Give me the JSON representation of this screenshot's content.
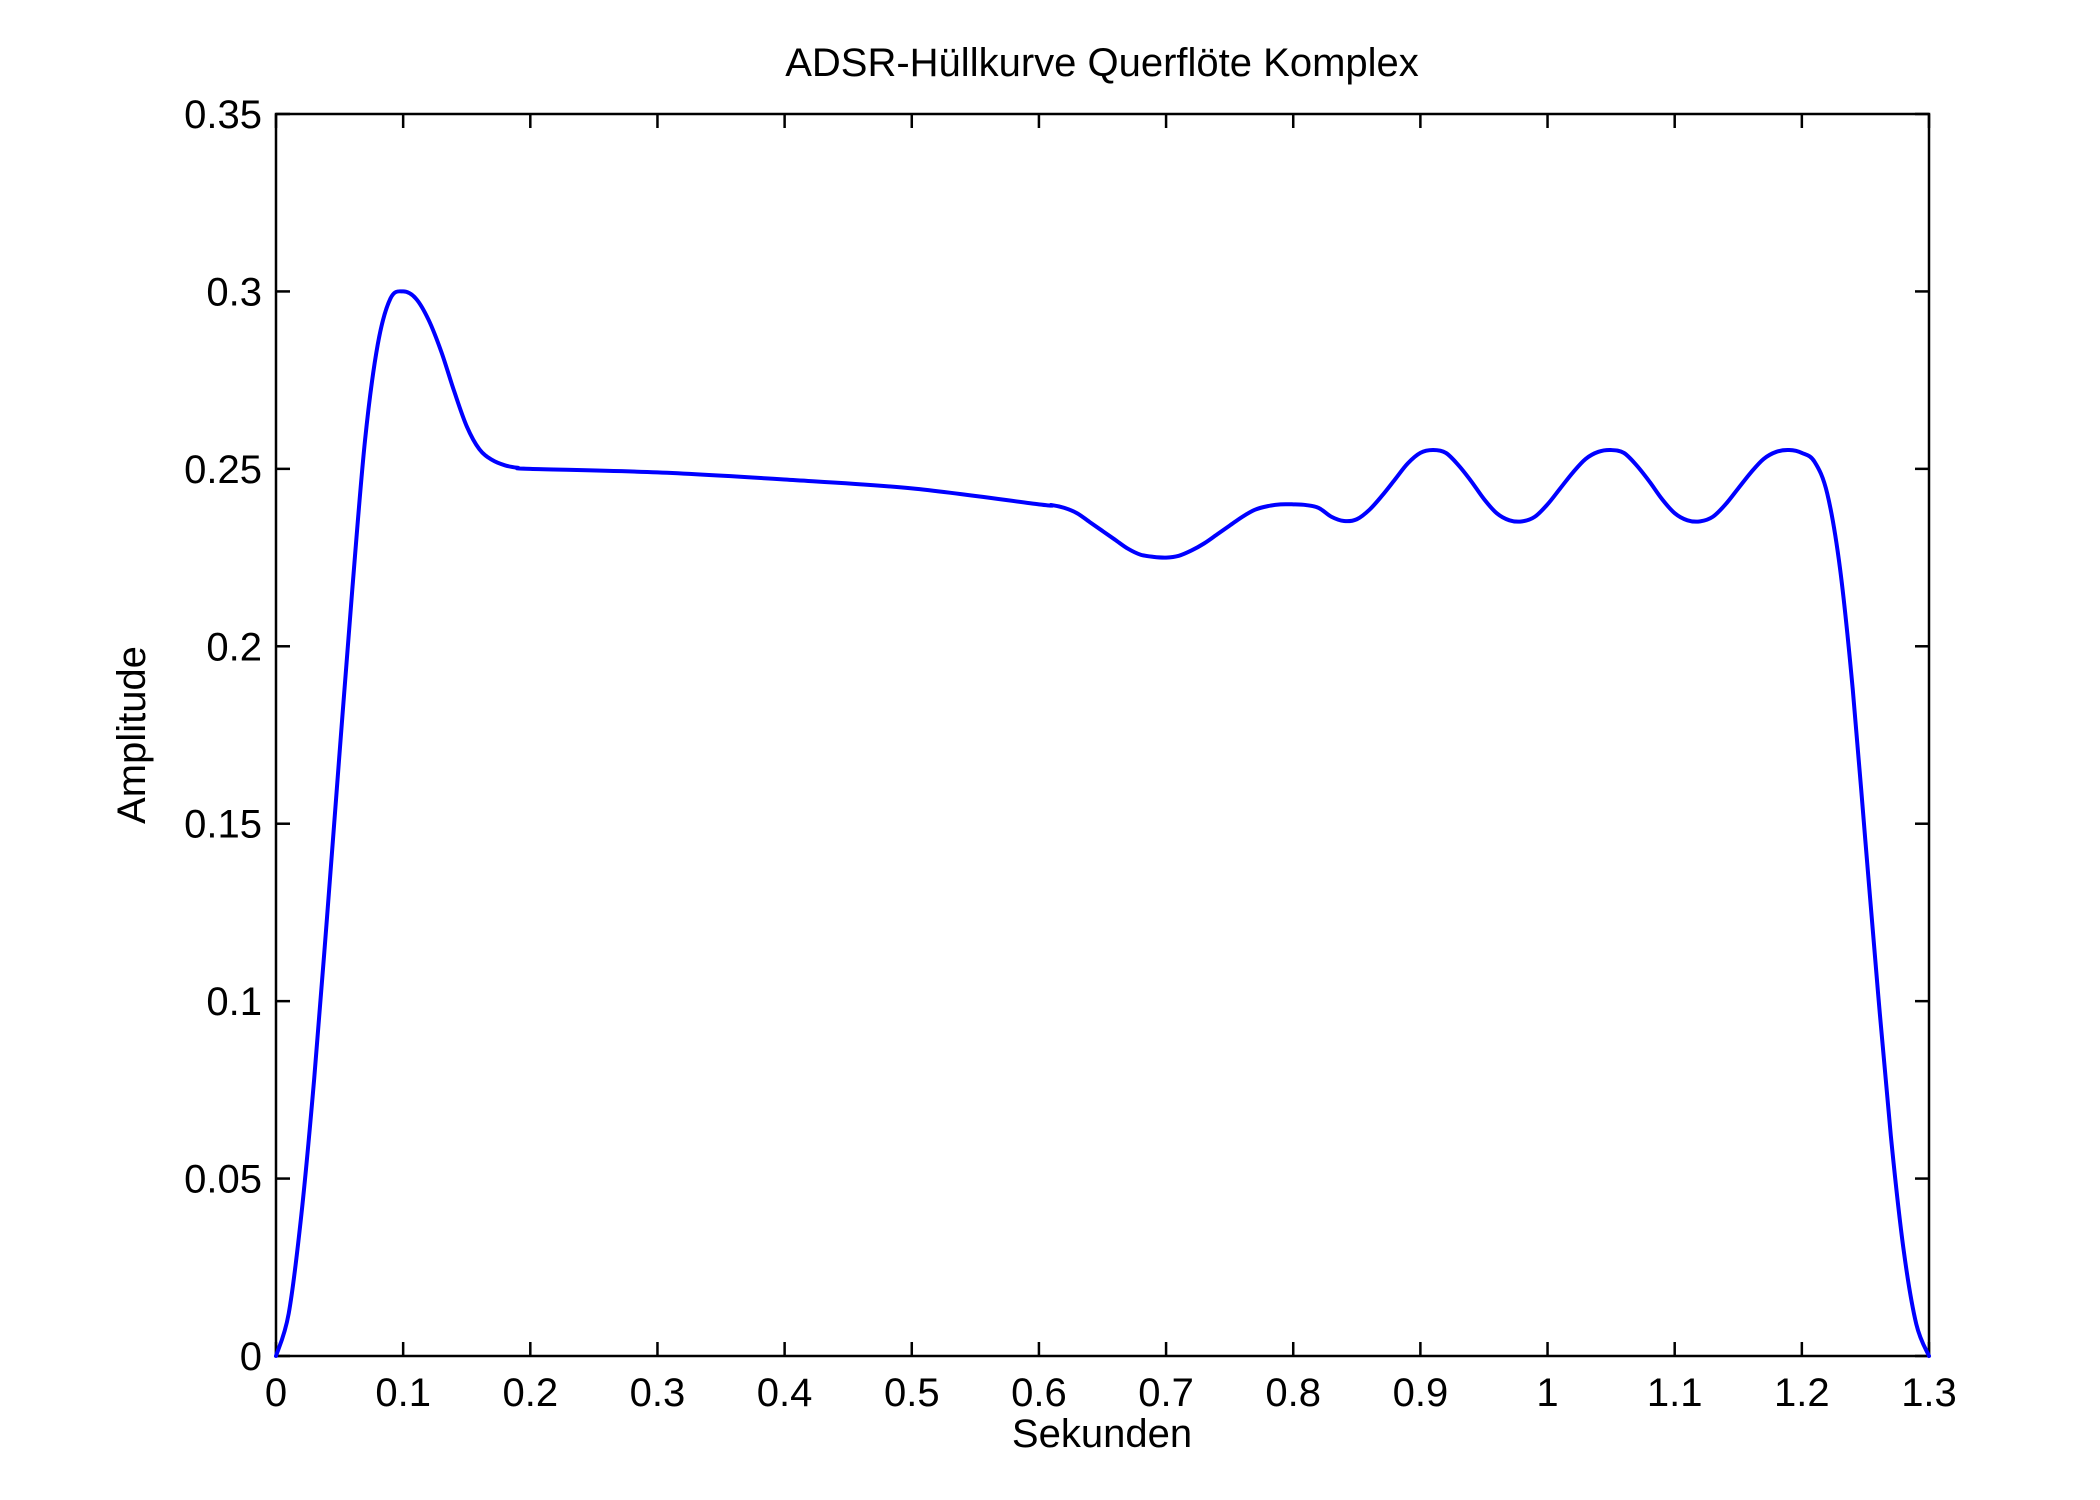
{
  "chart_data": {
    "type": "line",
    "title": "ADSR-Hüllkurve Querflöte Komplex",
    "xlabel": "Sekunden",
    "ylabel": "Amplitude",
    "xlim": [
      0,
      1.3
    ],
    "ylim": [
      0,
      0.35
    ],
    "grid": false,
    "x_ticks": [
      0,
      0.1,
      0.2,
      0.3,
      0.4,
      0.5,
      0.6,
      0.7,
      0.8,
      0.9,
      1.0,
      1.1,
      1.2,
      1.3
    ],
    "x_tick_labels": [
      "0",
      "0.1",
      "0.2",
      "0.3",
      "0.4",
      "0.5",
      "0.6",
      "0.7",
      "0.8",
      "0.9",
      "1",
      "1.1",
      "1.2",
      "1.3"
    ],
    "y_ticks": [
      0,
      0.05,
      0.1,
      0.15,
      0.2,
      0.25,
      0.3,
      0.35
    ],
    "y_tick_labels": [
      "0",
      "0.05",
      "0.1",
      "0.15",
      "0.2",
      "0.25",
      "0.3",
      "0.35"
    ],
    "line_color": "#0000ff",
    "series": [
      {
        "x": [
          0,
          0.01,
          0.02,
          0.03,
          0.04,
          0.05,
          0.06,
          0.07,
          0.08,
          0.09,
          0.1,
          0.11,
          0.12,
          0.13,
          0.14,
          0.15,
          0.16,
          0.17,
          0.18,
          0.19,
          0.2,
          0.3,
          0.4,
          0.5,
          0.6,
          0.61,
          0.62,
          0.63,
          0.64,
          0.65,
          0.66,
          0.67,
          0.68,
          0.69,
          0.7,
          0.71,
          0.72,
          0.73,
          0.74,
          0.75,
          0.76,
          0.77,
          0.78,
          0.79,
          0.8,
          0.81,
          0.82,
          0.83,
          0.84,
          0.85,
          0.86,
          0.87,
          0.88,
          0.89,
          0.9,
          0.91,
          0.92,
          0.93,
          0.94,
          0.95,
          0.96,
          0.97,
          0.98,
          0.99,
          1.0,
          1.01,
          1.02,
          1.03,
          1.04,
          1.05,
          1.06,
          1.07,
          1.08,
          1.09,
          1.1,
          1.11,
          1.12,
          1.13,
          1.14,
          1.15,
          1.16,
          1.17,
          1.18,
          1.19,
          1.2,
          1.21,
          1.22,
          1.23,
          1.24,
          1.25,
          1.26,
          1.27,
          1.28,
          1.29,
          1.3
        ],
        "y": [
          0,
          0.012,
          0.04,
          0.078,
          0.123,
          0.17,
          0.216,
          0.258,
          0.285,
          0.298,
          0.3,
          0.298,
          0.292,
          0.283,
          0.272,
          0.262,
          0.2555,
          0.2525,
          0.251,
          0.2503,
          0.25,
          0.249,
          0.247,
          0.2445,
          0.24,
          0.2398,
          0.239,
          0.2375,
          0.235,
          0.2325,
          0.23,
          0.2275,
          0.2258,
          0.2252,
          0.225,
          0.2255,
          0.227,
          0.229,
          0.2315,
          0.234,
          0.2365,
          0.2385,
          0.2395,
          0.24,
          0.24,
          0.2398,
          0.239,
          0.2365,
          0.2353,
          0.2358,
          0.2385,
          0.2425,
          0.247,
          0.2515,
          0.2545,
          0.2553,
          0.2545,
          0.251,
          0.2465,
          0.2415,
          0.2375,
          0.2355,
          0.2352,
          0.2365,
          0.24,
          0.2445,
          0.249,
          0.2528,
          0.2548,
          0.2553,
          0.2545,
          0.251,
          0.2465,
          0.2415,
          0.2375,
          0.2355,
          0.2352,
          0.2365,
          0.24,
          0.2445,
          0.249,
          0.2528,
          0.2548,
          0.2553,
          0.2545,
          0.252,
          0.243,
          0.222,
          0.188,
          0.145,
          0.102,
          0.062,
          0.03,
          0.009,
          0
        ]
      }
    ]
  }
}
